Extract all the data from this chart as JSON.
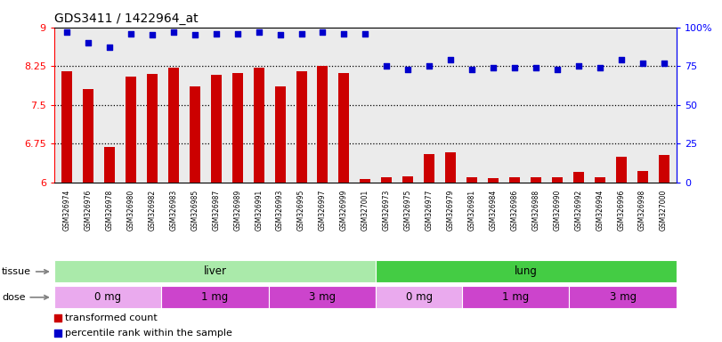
{
  "title": "GDS3411 / 1422964_at",
  "samples": [
    "GSM326974",
    "GSM326976",
    "GSM326978",
    "GSM326980",
    "GSM326982",
    "GSM326983",
    "GSM326985",
    "GSM326987",
    "GSM326989",
    "GSM326991",
    "GSM326993",
    "GSM326995",
    "GSM326997",
    "GSM326999",
    "GSM327001",
    "GSM326973",
    "GSM326975",
    "GSM326977",
    "GSM326979",
    "GSM326981",
    "GSM326984",
    "GSM326986",
    "GSM326988",
    "GSM326990",
    "GSM326992",
    "GSM326994",
    "GSM326996",
    "GSM326998",
    "GSM327000"
  ],
  "red_values": [
    8.15,
    7.8,
    6.68,
    8.05,
    8.1,
    8.22,
    7.85,
    8.08,
    8.12,
    8.22,
    7.85,
    8.15,
    8.25,
    8.12,
    6.07,
    6.09,
    6.12,
    6.55,
    6.58,
    6.1,
    6.08,
    6.1,
    6.09,
    6.09,
    6.2,
    6.1,
    6.5,
    6.22,
    6.53
  ],
  "blue_values": [
    97,
    90,
    87,
    96,
    95,
    97,
    95,
    96,
    96,
    97,
    95,
    96,
    97,
    96,
    96,
    75,
    73,
    75,
    79,
    73,
    74,
    74,
    74,
    73,
    75,
    74,
    79,
    77,
    77
  ],
  "ylim_left": [
    6.0,
    9.0
  ],
  "ylim_right": [
    0,
    100
  ],
  "yticks_left": [
    6.0,
    6.75,
    7.5,
    8.25,
    9.0
  ],
  "yticks_right": [
    0,
    25,
    50,
    75,
    100
  ],
  "ytick_labels_left": [
    "6",
    "6.75",
    "7.5",
    "8.25",
    "9"
  ],
  "ytick_labels_right": [
    "0",
    "25",
    "50",
    "75",
    "100%"
  ],
  "hlines": [
    6.75,
    7.5,
    8.25
  ],
  "tissue_groups": [
    {
      "label": "liver",
      "start": 0,
      "end": 14,
      "color": "#AAEAAA"
    },
    {
      "label": "lung",
      "start": 15,
      "end": 28,
      "color": "#44CC44"
    }
  ],
  "dose_groups": [
    {
      "label": "0 mg",
      "start": 0,
      "end": 4,
      "color": "#EAAAEE"
    },
    {
      "label": "1 mg",
      "start": 5,
      "end": 9,
      "color": "#CC44CC"
    },
    {
      "label": "3 mg",
      "start": 10,
      "end": 14,
      "color": "#CC44CC"
    },
    {
      "label": "0 mg",
      "start": 15,
      "end": 18,
      "color": "#EAAAEE"
    },
    {
      "label": "1 mg",
      "start": 19,
      "end": 23,
      "color": "#CC44CC"
    },
    {
      "label": "3 mg",
      "start": 24,
      "end": 28,
      "color": "#CC44CC"
    }
  ],
  "bar_color": "#CC0000",
  "dot_color": "#0000CC",
  "bg_color": "#EBEBEB",
  "xtick_bg": "#D8D8D8",
  "tissue_label": "tissue",
  "dose_label": "dose",
  "legend_items": [
    {
      "color": "#CC0000",
      "label": "transformed count"
    },
    {
      "color": "#0000CC",
      "label": "percentile rank within the sample"
    }
  ]
}
